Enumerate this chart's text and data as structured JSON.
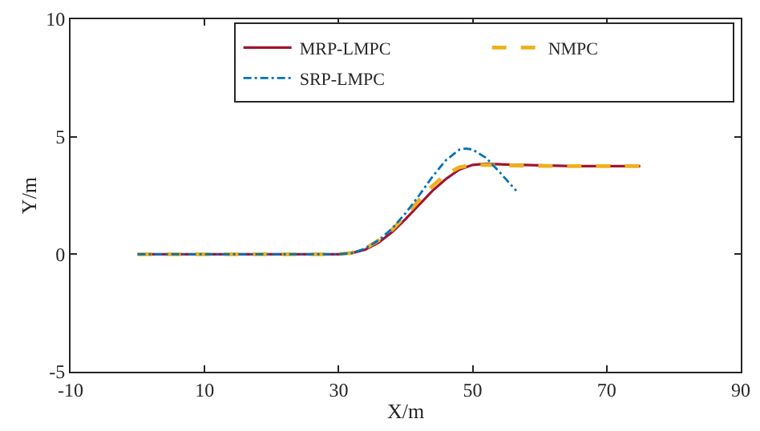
{
  "chart_data": {
    "type": "line",
    "xlabel": "X/m",
    "ylabel": "Y/m",
    "xlim": [
      -10,
      90
    ],
    "xticks": [
      -10,
      10,
      30,
      50,
      70,
      90
    ],
    "ylim": [
      -5,
      10
    ],
    "yticks": [
      -5,
      0,
      5,
      10
    ],
    "grid": false,
    "legend": "top right",
    "marker": "none",
    "series": [
      {
        "name": "MRP-LMPC",
        "color": "#a2142f",
        "line_style": "solid",
        "x": [
          0,
          10,
          20,
          30,
          32,
          34,
          36,
          38,
          40,
          42,
          44,
          46,
          48,
          50,
          52,
          55,
          60,
          65,
          70,
          75
        ],
        "values": [
          0,
          0,
          0,
          0,
          0.05,
          0.2,
          0.5,
          0.95,
          1.5,
          2.1,
          2.7,
          3.2,
          3.6,
          3.8,
          3.85,
          3.82,
          3.78,
          3.75,
          3.75,
          3.75
        ]
      },
      {
        "name": "NMPC",
        "color": "#edb120",
        "line_style": "dashed",
        "x": [
          0,
          10,
          20,
          30,
          32,
          34,
          36,
          38,
          40,
          42,
          44,
          46,
          48,
          50,
          52,
          55,
          60,
          65,
          70,
          75
        ],
        "values": [
          0,
          0,
          0,
          0,
          0.06,
          0.25,
          0.6,
          1.05,
          1.65,
          2.3,
          2.9,
          3.4,
          3.7,
          3.8,
          3.8,
          3.78,
          3.76,
          3.75,
          3.75,
          3.75
        ]
      },
      {
        "name": "SRP-LMPC",
        "color": "#0072bd",
        "line_style": "dashdot",
        "x": [
          0,
          10,
          20,
          30,
          32,
          34,
          36,
          38,
          40,
          42,
          44,
          46,
          48,
          49,
          50,
          52,
          54,
          56.5
        ],
        "values": [
          0,
          0,
          0,
          0,
          0.05,
          0.25,
          0.6,
          1.1,
          1.75,
          2.5,
          3.3,
          4.0,
          4.45,
          4.5,
          4.45,
          4.1,
          3.5,
          2.7
        ]
      }
    ]
  }
}
